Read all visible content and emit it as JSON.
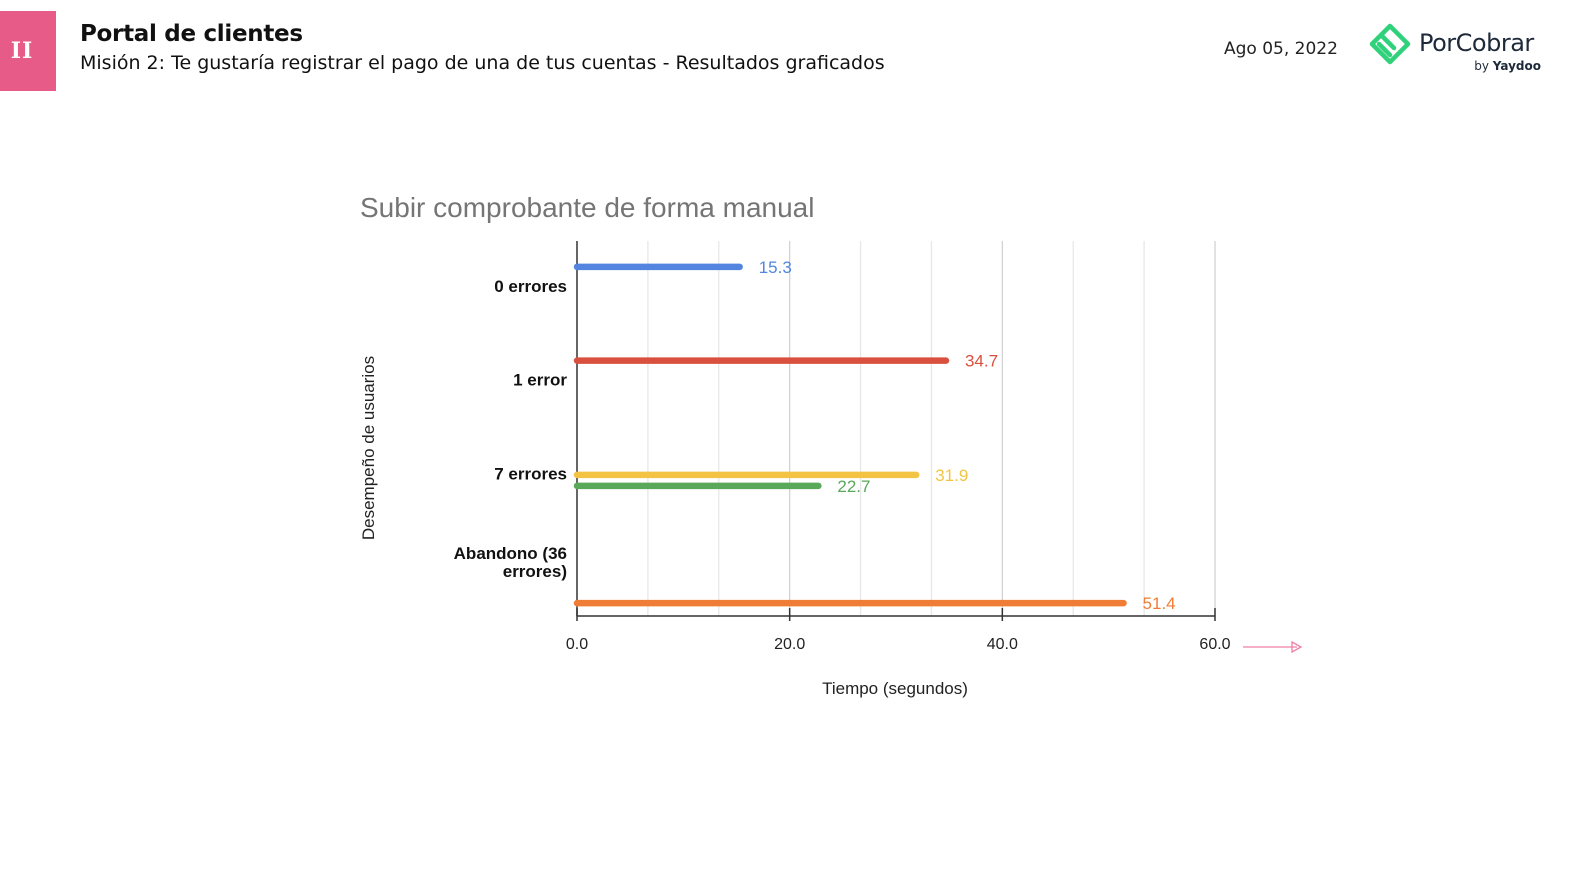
{
  "header": {
    "badge": "II",
    "title": "Portal de clientes",
    "subtitle": "Misión 2: Te gustaría registrar el pago de una de tus cuentas - Resultados graficados",
    "date": "Ago 05, 2022"
  },
  "brand": {
    "name": "PorCobrar",
    "by": "by",
    "by_name": "Yaydoo",
    "colors": {
      "badge": "#e75b88",
      "logo_green": "#2fd27a"
    }
  },
  "chart_data": {
    "type": "bar",
    "orientation": "horizontal",
    "title": "Subir comprobante de forma manual",
    "xlabel": "Tiempo (segundos)",
    "ylabel": "Desempeño de usuarios",
    "xlim": [
      0,
      60
    ],
    "xticks": [
      "0.0",
      "20.0",
      "40.0",
      "60.0"
    ],
    "grid": true,
    "categories": [
      "0 errores",
      "1 error",
      "7 errores",
      "Abandono (36 errores)"
    ],
    "category_lines": [
      [
        "0 errores"
      ],
      [
        "1 error"
      ],
      [
        "7 errores"
      ],
      [
        "Abandono (36",
        "errores)"
      ]
    ],
    "bars": [
      {
        "category": "0 errores",
        "value": 15.3,
        "label": "15.3",
        "color": "#5284e0"
      },
      {
        "category": "1 error",
        "value": 34.7,
        "label": "34.7",
        "color": "#d9503f"
      },
      {
        "category": "7 errores",
        "value": 31.9,
        "label": "31.9",
        "color": "#f3c443"
      },
      {
        "category": "7 errores",
        "value": 22.7,
        "label": "22.7",
        "color": "#5aa85a"
      },
      {
        "category": "Abandono (36 errores)",
        "value": 51.4,
        "label": "51.4",
        "color": "#ef7d35"
      }
    ],
    "arrow_color": "#f07fa6"
  }
}
